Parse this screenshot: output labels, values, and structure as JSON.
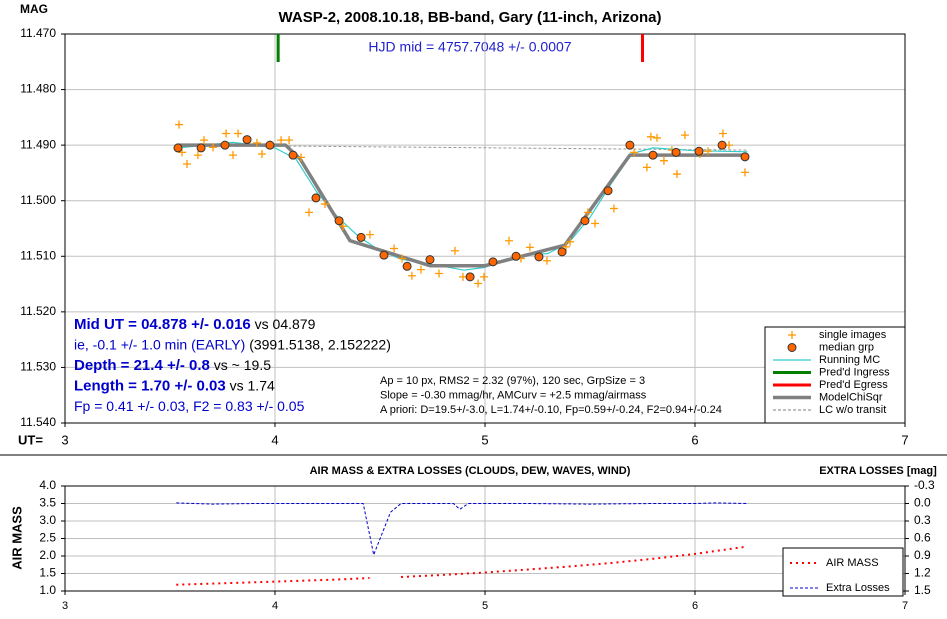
{
  "chart_data": [
    {
      "type": "scatter",
      "title": "WASP-2, 2008.10.18, BB-band, Gary (11-inch, Arizona)",
      "y_label": "MAG",
      "x_label": "UT=",
      "xlim": [
        3,
        7
      ],
      "xticks": [
        3,
        4,
        5,
        6,
        7
      ],
      "ylim": [
        11.54,
        11.47
      ],
      "yticks": [
        {
          "value": 11.47,
          "label": "11.470"
        },
        {
          "value": 11.48,
          "label": "11.480"
        },
        {
          "value": 11.49,
          "label": "11.490"
        },
        {
          "value": 11.5,
          "label": "11.500"
        },
        {
          "value": 11.51,
          "label": "11.510"
        },
        {
          "value": 11.52,
          "label": "11.520"
        },
        {
          "value": 11.53,
          "label": "11.530"
        },
        {
          "value": 11.54,
          "label": "11.540"
        }
      ],
      "grid": true,
      "annotation": "HJD mid = 4757.7048 +/- 0.0007",
      "left_notes": [
        [
          {
            "text": "Mid UT = 04.878 +/- 0.016",
            "bold": true,
            "color": "#0000cc"
          },
          {
            "text": " vs 04.879",
            "bold": false,
            "color": "#000000"
          }
        ],
        [
          {
            "text": "ie, -0.1 +/- 1.0 min (EARLY)",
            "bold": false,
            "color": "#0000cc"
          },
          {
            "text": " (3991.5138, 2.152222)",
            "bold": false,
            "color": "#000000"
          }
        ],
        [
          {
            "text": "Depth = 21.4 +/- 0.8",
            "bold": true,
            "color": "#0000cc"
          },
          {
            "text": " vs ~ 19.5",
            "bold": false,
            "color": "#000000"
          }
        ],
        [
          {
            "text": "Length = 1.70 +/- 0.03",
            "bold": true,
            "color": "#0000cc"
          },
          {
            "text": " vs 1.74",
            "bold": false,
            "color": "#000000"
          }
        ],
        [
          {
            "text": "Fp = 0.41 +/- 0.03, F2 = 0.83 +/- 0.05",
            "bold": false,
            "color": "#0000cc"
          }
        ]
      ],
      "center_notes": [
        "Ap = 10 px, RMS2 = 2.32 (97%), 120 sec, GrpSize = 3",
        "Slope = -0.30 mmag/hr, AMCurv = +2.5 mmag/airmass",
        "A priori: D=19.5+/-3.0, L=1.74+/-0.10, Fp=0.59+/-0.24, F2=0.94+/-0.24"
      ],
      "legend": "lower right",
      "series": [
        {
          "name": "single images",
          "kind": "plus",
          "color": "#ff9900",
          "x": [
            3.543,
            3.557,
            3.581,
            3.633,
            3.662,
            3.705,
            3.767,
            3.8,
            3.824,
            3.914,
            3.938,
            4.029,
            4.067,
            4.124,
            4.162,
            4.238,
            4.324,
            4.452,
            4.567,
            4.605,
            4.652,
            4.695,
            4.781,
            4.857,
            4.895,
            4.967,
            4.995,
            5.114,
            5.171,
            5.214,
            5.295,
            5.386,
            5.405,
            5.49,
            5.524,
            5.614,
            5.71,
            5.771,
            5.79,
            5.819,
            5.852,
            5.89,
            5.914,
            5.952,
            6.024,
            6.062,
            6.133,
            6.162,
            6.238
          ],
          "values": [
            11.4863,
            11.4913,
            11.4934,
            11.4918,
            11.4891,
            11.4904,
            11.4879,
            11.4918,
            11.4879,
            11.4896,
            11.4916,
            11.4891,
            11.4891,
            11.4922,
            11.5021,
            11.5006,
            11.5046,
            11.5061,
            11.5086,
            11.5104,
            11.5135,
            11.5124,
            11.5131,
            11.509,
            11.5137,
            11.5149,
            11.5137,
            11.5072,
            11.5104,
            11.5084,
            11.5108,
            11.5083,
            11.5074,
            11.5021,
            11.5041,
            11.5014,
            11.4913,
            11.494,
            11.4885,
            11.4887,
            11.4928,
            11.4909,
            11.4952,
            11.4882,
            11.4916,
            11.4911,
            11.4879,
            11.49,
            11.4949
          ]
        },
        {
          "name": "median grp",
          "kind": "circle",
          "color": "#ff6600",
          "x": [
            3.538,
            3.648,
            3.762,
            3.867,
            3.976,
            4.086,
            4.195,
            4.305,
            4.41,
            4.519,
            4.629,
            4.738,
            4.929,
            5.038,
            5.148,
            5.257,
            5.367,
            5.476,
            5.586,
            5.69,
            5.8,
            5.91,
            6.019,
            6.129,
            6.238
          ],
          "values": [
            11.4905,
            11.4905,
            11.49,
            11.489,
            11.49,
            11.4918,
            11.4995,
            11.5036,
            11.5066,
            11.5098,
            11.5118,
            11.5106,
            11.5137,
            11.511,
            11.51,
            11.5101,
            11.5092,
            11.5036,
            11.4982,
            11.49,
            11.4918,
            11.4913,
            11.4911,
            11.49,
            11.4921
          ]
        },
        {
          "name": "Running MC",
          "kind": "line",
          "color": "#33cccc",
          "x": [
            3.54,
            3.8,
            4.0,
            4.1,
            4.2,
            4.3,
            4.4,
            4.5,
            4.6,
            4.7,
            4.8,
            4.9,
            5.0,
            5.1,
            5.2,
            5.3,
            5.4,
            5.5,
            5.6,
            5.7,
            5.8,
            6.0,
            6.25
          ],
          "values": [
            11.4905,
            11.4895,
            11.4905,
            11.4925,
            11.4985,
            11.503,
            11.5065,
            11.509,
            11.5105,
            11.5112,
            11.5118,
            11.5125,
            11.512,
            11.5105,
            11.5098,
            11.5095,
            11.5075,
            11.503,
            11.497,
            11.4915,
            11.4905,
            11.491,
            11.4912
          ]
        },
        {
          "name": "Pred'd Ingress",
          "kind": "vline",
          "color": "#008000",
          "x": 4.015
        },
        {
          "name": "Pred'd Egress",
          "kind": "vline",
          "color": "#ff0000",
          "x": 5.75
        },
        {
          "name": "ModelChiSqr",
          "kind": "thick",
          "color": "#808080",
          "x": [
            3.54,
            4.05,
            4.12,
            4.357,
            4.738,
            5.0,
            5.38,
            5.69,
            6.25
          ],
          "values": [
            11.49,
            11.49,
            11.4925,
            11.5072,
            11.5117,
            11.5117,
            11.508,
            11.4918,
            11.4918
          ]
        },
        {
          "name": "LC w/o transit",
          "kind": "dashed",
          "color": "#999999",
          "x": [
            3.54,
            6.25
          ],
          "values": [
            11.49,
            11.4909
          ]
        }
      ]
    },
    {
      "type": "line",
      "title": "AIR MASS & EXTRA LOSSES (CLOUDS, DEW, WAVES, WIND)",
      "y_label": "AIR MASS",
      "y2_label": "EXTRA LOSSES [mag]",
      "xlim": [
        3,
        7
      ],
      "xticks": [
        3,
        4,
        5,
        6,
        7
      ],
      "ylim": [
        1,
        4
      ],
      "yticks": [
        {
          "value": 4,
          "label": "4.0"
        },
        3.5,
        {
          "value": 3,
          "label": "3.0"
        },
        2.5,
        {
          "value": 2,
          "label": "2.0"
        },
        1.5,
        {
          "value": 1,
          "label": "1.0"
        }
      ],
      "y2lim": [
        1.5,
        -0.3
      ],
      "y2ticks": [
        -0.3,
        {
          "value": 0,
          "label": "0.0"
        },
        0.3,
        0.6,
        0.9,
        1.2,
        1.5
      ],
      "grid": true,
      "legend": "right",
      "series": [
        {
          "name": "AIR MASS",
          "color": "#ff0000",
          "dash": "dotted",
          "x": [
            3.53,
            3.7,
            3.9,
            4.1,
            4.3,
            4.45,
            4.52,
            4.6,
            4.8,
            5.0,
            5.2,
            5.4,
            5.6,
            5.8,
            6.0,
            6.25
          ],
          "values": [
            1.18,
            1.21,
            1.25,
            1.29,
            1.33,
            1.37,
            null,
            1.4,
            1.46,
            1.53,
            1.61,
            1.7,
            1.8,
            1.92,
            2.06,
            2.27
          ]
        },
        {
          "name": "Extra Losses",
          "color": "#0000cc",
          "dash": "dashed",
          "axis": "y2",
          "x": [
            3.53,
            3.7,
            3.9,
            4.1,
            4.3,
            4.42,
            4.47,
            4.55,
            4.6,
            4.85,
            4.88,
            4.92,
            5.2,
            5.5,
            5.8,
            6.0,
            6.1,
            6.25
          ],
          "values": [
            -0.01,
            0.01,
            0,
            0,
            0,
            0,
            0.88,
            0.15,
            0,
            0,
            0.1,
            0,
            0,
            0.01,
            0,
            0,
            -0.01,
            0
          ]
        }
      ]
    }
  ]
}
